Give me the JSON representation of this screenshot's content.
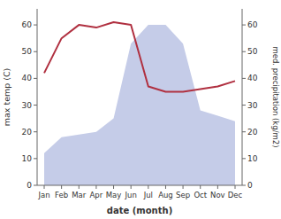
{
  "chart_data": {
    "type": "line",
    "xlabel": "date (month)",
    "ylabel": "max temp (C)",
    "y2label": "med. precipitation (kg/m2)",
    "categories": [
      "Jan",
      "Feb",
      "Mar",
      "Apr",
      "May",
      "Jun",
      "Jul",
      "Aug",
      "Sep",
      "Oct",
      "Nov",
      "Dec"
    ],
    "series": [
      {
        "type": "area",
        "axis": "y2",
        "color": "#c5cce8",
        "values": [
          12,
          18,
          19,
          20,
          25,
          53,
          60,
          60,
          53,
          28,
          26,
          24
        ]
      },
      {
        "type": "line",
        "color": "#b03040",
        "values": [
          42,
          55,
          60,
          59,
          61,
          60,
          37,
          35,
          35,
          36,
          37,
          39
        ]
      }
    ],
    "ylim": [
      0,
      66
    ],
    "yticks": [
      0,
      10,
      20,
      30,
      40,
      50,
      60
    ],
    "y2lim": [
      0,
      66
    ],
    "y2ticks": [
      0,
      10,
      20,
      30,
      40,
      50,
      60
    ]
  }
}
